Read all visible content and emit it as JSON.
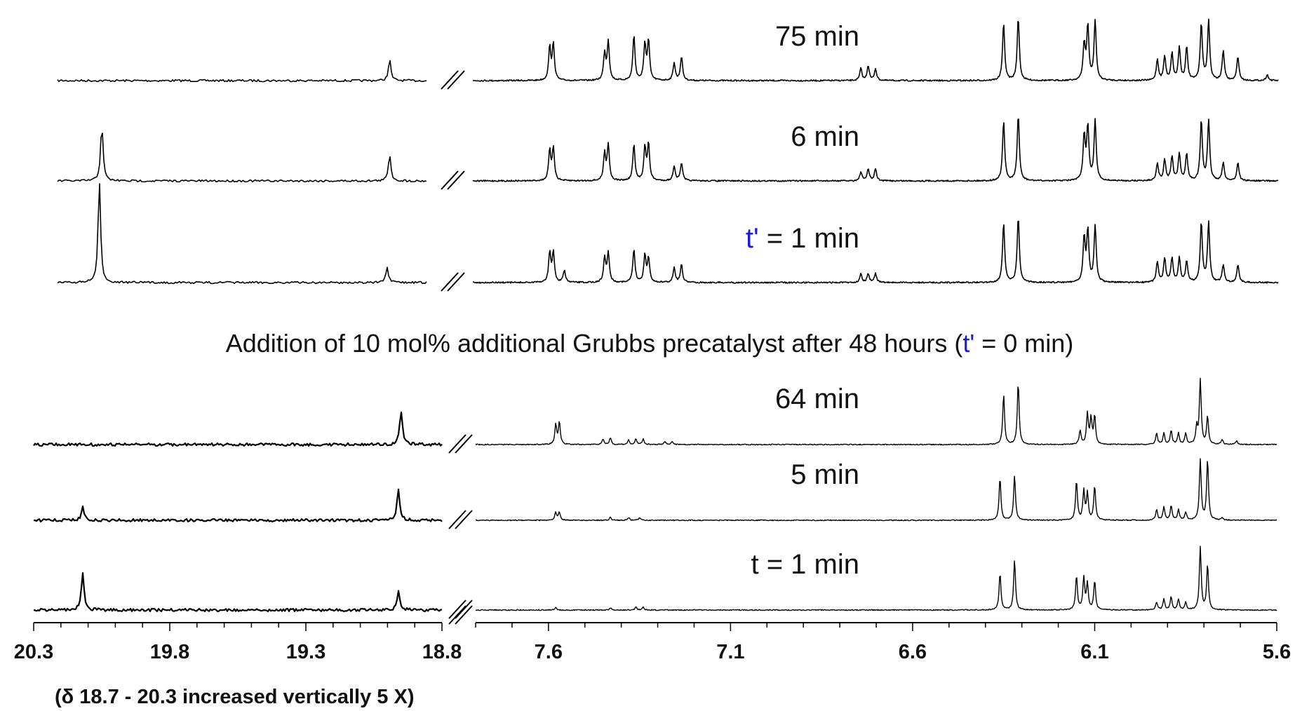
{
  "chart_data": {
    "type": "line",
    "description_axis": "chemical shift (ppm), reversed, split axis",
    "segments": {
      "left": {
        "xlim": [
          20.3,
          18.8
        ],
        "ticks": [
          "20.3",
          "19.8",
          "19.3",
          "18.8"
        ]
      },
      "right": {
        "xlim": [
          7.8,
          5.6
        ],
        "ticks": [
          "7.6",
          "7.1",
          "6.6",
          "6.1",
          "5.6"
        ]
      }
    },
    "axis_break": "//",
    "footnote": "(δ 18.7 - 20.3 increased vertically 5 X)",
    "addition_note": {
      "before": "Addition of 10 mol% additional Grubbs precatalyst after 48 hours (",
      "prime": "t'",
      "after": " = 0 min)"
    },
    "grid": false,
    "legend": "none",
    "upper_series": [
      {
        "label": "75 min",
        "lowfield_peaks": [
          [
            18.95,
            0.35
          ]
        ],
        "peaks": [
          [
            7.59,
            0.55
          ],
          [
            7.58,
            0.6
          ],
          [
            7.44,
            0.45
          ],
          [
            7.43,
            0.65
          ],
          [
            7.36,
            0.75
          ],
          [
            7.33,
            0.6
          ],
          [
            7.32,
            0.65
          ],
          [
            7.25,
            0.3
          ],
          [
            7.23,
            0.4
          ],
          [
            6.74,
            0.2
          ],
          [
            6.72,
            0.25
          ],
          [
            6.7,
            0.2
          ],
          [
            6.35,
            0.95
          ],
          [
            6.31,
            1.05
          ],
          [
            6.13,
            0.6
          ],
          [
            6.12,
            0.9
          ],
          [
            6.1,
            1.0
          ],
          [
            5.93,
            0.35
          ],
          [
            5.91,
            0.4
          ],
          [
            5.89,
            0.45
          ],
          [
            5.87,
            0.55
          ],
          [
            5.85,
            0.55
          ],
          [
            5.81,
            0.95
          ],
          [
            5.79,
            1.0
          ],
          [
            5.75,
            0.5
          ],
          [
            5.71,
            0.4
          ],
          [
            5.63,
            0.1
          ]
        ]
      },
      {
        "label": "6 min",
        "lowfield_peaks": [
          [
            20.12,
            0.95
          ],
          [
            18.95,
            0.45
          ]
        ],
        "peaks": [
          [
            7.59,
            0.5
          ],
          [
            7.58,
            0.55
          ],
          [
            7.44,
            0.45
          ],
          [
            7.43,
            0.6
          ],
          [
            7.36,
            0.6
          ],
          [
            7.33,
            0.55
          ],
          [
            7.32,
            0.6
          ],
          [
            7.25,
            0.25
          ],
          [
            7.23,
            0.3
          ],
          [
            6.74,
            0.15
          ],
          [
            6.72,
            0.2
          ],
          [
            6.7,
            0.2
          ],
          [
            6.35,
            1.0
          ],
          [
            6.31,
            1.1
          ],
          [
            6.13,
            0.75
          ],
          [
            6.12,
            0.9
          ],
          [
            6.1,
            1.0
          ],
          [
            5.93,
            0.3
          ],
          [
            5.91,
            0.35
          ],
          [
            5.89,
            0.4
          ],
          [
            5.87,
            0.45
          ],
          [
            5.85,
            0.45
          ],
          [
            5.81,
            1.0
          ],
          [
            5.79,
            1.0
          ],
          [
            5.75,
            0.3
          ],
          [
            5.71,
            0.3
          ]
        ]
      },
      {
        "label_prime": "t'",
        "label_rest": " = 1 min",
        "lowfield_peaks": [
          [
            20.13,
            1.7
          ],
          [
            18.96,
            0.25
          ]
        ],
        "peaks": [
          [
            7.59,
            0.5
          ],
          [
            7.58,
            0.5
          ],
          [
            7.55,
            0.2
          ],
          [
            7.44,
            0.4
          ],
          [
            7.43,
            0.5
          ],
          [
            7.36,
            0.55
          ],
          [
            7.33,
            0.45
          ],
          [
            7.32,
            0.4
          ],
          [
            7.25,
            0.25
          ],
          [
            7.23,
            0.3
          ],
          [
            6.74,
            0.15
          ],
          [
            6.72,
            0.15
          ],
          [
            6.7,
            0.15
          ],
          [
            6.35,
            1.0
          ],
          [
            6.31,
            1.1
          ],
          [
            6.13,
            0.75
          ],
          [
            6.12,
            0.85
          ],
          [
            6.1,
            0.95
          ],
          [
            5.93,
            0.35
          ],
          [
            5.91,
            0.4
          ],
          [
            5.89,
            0.4
          ],
          [
            5.87,
            0.4
          ],
          [
            5.85,
            0.35
          ],
          [
            5.81,
            1.0
          ],
          [
            5.79,
            1.0
          ],
          [
            5.75,
            0.3
          ],
          [
            5.71,
            0.3
          ]
        ]
      }
    ],
    "lower_series": [
      {
        "label": "64 min",
        "lowfield_peaks": [
          [
            18.95,
            0.6
          ]
        ],
        "peaks": [
          [
            7.58,
            0.35
          ],
          [
            7.57,
            0.4
          ],
          [
            7.45,
            0.1
          ],
          [
            7.43,
            0.12
          ],
          [
            7.38,
            0.08
          ],
          [
            7.36,
            0.1
          ],
          [
            7.34,
            0.1
          ],
          [
            7.28,
            0.05
          ],
          [
            7.26,
            0.05
          ],
          [
            6.35,
            0.9
          ],
          [
            6.31,
            1.1
          ],
          [
            6.14,
            0.25
          ],
          [
            6.12,
            0.55
          ],
          [
            6.11,
            0.45
          ],
          [
            6.1,
            0.5
          ],
          [
            5.93,
            0.2
          ],
          [
            5.91,
            0.2
          ],
          [
            5.89,
            0.25
          ],
          [
            5.87,
            0.2
          ],
          [
            5.85,
            0.2
          ],
          [
            5.82,
            0.3
          ],
          [
            5.81,
            1.15
          ],
          [
            5.79,
            0.5
          ],
          [
            5.75,
            0.08
          ],
          [
            5.71,
            0.07
          ]
        ]
      },
      {
        "label": "5 min",
        "lowfield_peaks": [
          [
            20.12,
            0.25
          ],
          [
            18.96,
            0.6
          ]
        ],
        "peaks": [
          [
            7.58,
            0.15
          ],
          [
            7.57,
            0.15
          ],
          [
            7.43,
            0.06
          ],
          [
            7.38,
            0.05
          ],
          [
            7.35,
            0.05
          ],
          [
            6.36,
            0.8
          ],
          [
            6.32,
            0.85
          ],
          [
            6.15,
            0.75
          ],
          [
            6.13,
            0.55
          ],
          [
            6.12,
            0.5
          ],
          [
            6.1,
            0.65
          ],
          [
            5.93,
            0.2
          ],
          [
            5.91,
            0.25
          ],
          [
            5.89,
            0.27
          ],
          [
            5.87,
            0.2
          ],
          [
            5.85,
            0.15
          ],
          [
            5.81,
            1.15
          ],
          [
            5.79,
            1.15
          ],
          [
            5.75,
            0.05
          ]
        ]
      },
      {
        "label": "t = 1 min",
        "lowfield_peaks": [
          [
            20.12,
            0.7
          ],
          [
            18.96,
            0.35
          ]
        ],
        "peaks": [
          [
            7.58,
            0.05
          ],
          [
            7.43,
            0.04
          ],
          [
            7.36,
            0.06
          ],
          [
            7.34,
            0.05
          ],
          [
            6.36,
            0.7
          ],
          [
            6.32,
            0.95
          ],
          [
            6.15,
            0.65
          ],
          [
            6.13,
            0.6
          ],
          [
            6.12,
            0.5
          ],
          [
            6.1,
            0.55
          ],
          [
            5.93,
            0.15
          ],
          [
            5.91,
            0.2
          ],
          [
            5.89,
            0.25
          ],
          [
            5.87,
            0.2
          ],
          [
            5.85,
            0.15
          ],
          [
            5.81,
            1.2
          ],
          [
            5.79,
            0.85
          ]
        ]
      }
    ]
  }
}
